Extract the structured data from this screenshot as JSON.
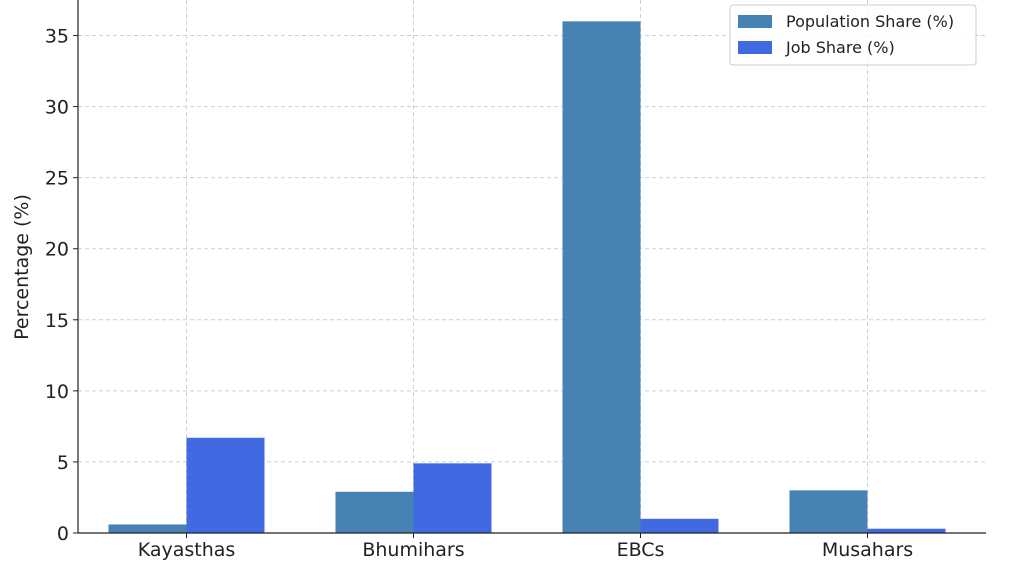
{
  "chart_data": {
    "type": "bar",
    "title": "",
    "xlabel": "",
    "ylabel": "Percentage (%)",
    "categories": [
      "Kayasthas",
      "Bhumihars",
      "EBCs",
      "Musahars"
    ],
    "series": [
      {
        "name": "Population Share (%)",
        "color": "#4682b4",
        "values": [
          0.6,
          2.9,
          36.0,
          3.0
        ]
      },
      {
        "name": "Job Share (%)",
        "color": "#4169e1",
        "values": [
          6.7,
          4.9,
          1.0,
          0.3
        ]
      }
    ],
    "ylim": [
      0,
      37.5
    ],
    "yticks": [
      "0",
      "5",
      "10",
      "15",
      "20",
      "25",
      "30",
      "35"
    ],
    "grid": true,
    "legend_position": "top-right"
  }
}
